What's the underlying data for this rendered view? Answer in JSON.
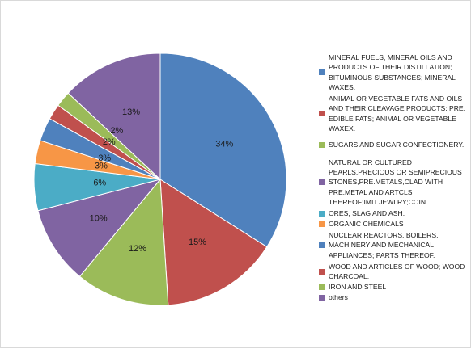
{
  "chart_data": {
    "type": "pie",
    "title": "",
    "start_angle_deg": 0,
    "direction": "clockwise",
    "legend_position": "right",
    "slices": [
      {
        "label": "MINERAL FUELS, MINERAL OILS AND PRODUCTS OF THEIR DISTILLATION; BITUMINOUS SUBSTANCES; MINERAL WAXES.",
        "value": 34,
        "value_label": "34%",
        "color": "#4f81bd"
      },
      {
        "label": "ANIMAL OR VEGETABLE FATS AND OILS AND THEIR CLEAVAGE PRODUCTS; PRE. EDIBLE FATS; ANIMAL OR VEGETABLE WAXEX.",
        "value": 15,
        "value_label": "15%",
        "color": "#c0504d"
      },
      {
        "label": "SUGARS AND SUGAR CONFECTIONERY.",
        "value": 12,
        "value_label": "12%",
        "color": "#9bbb59"
      },
      {
        "label": "NATURAL OR CULTURED PEARLS,PRECIOUS OR SEMIPRECIOUS STONES,PRE.METALS,CLAD WITH PRE.METAL AND ARTCLS THEREOF;IMIT.JEWLRY;COIN.",
        "value": 10,
        "value_label": "10%",
        "color": "#8064a2"
      },
      {
        "label": "ORES, SLAG AND ASH.",
        "value": 6,
        "value_label": "6%",
        "color": "#4bacc6"
      },
      {
        "label": "ORGANIC CHEMICALS",
        "value": 3,
        "value_label": "3%",
        "color": "#f79646"
      },
      {
        "label": "NUCLEAR REACTORS, BOILERS, MACHINERY AND MECHANICAL APPLIANCES; PARTS THEREOF.",
        "value": 3,
        "value_label": "3%",
        "color": "#4f81bd"
      },
      {
        "label": "WOOD AND ARTICLES OF WOOD; WOOD CHARCOAL.",
        "value": 2,
        "value_label": "2%",
        "color": "#c0504d"
      },
      {
        "label": "IRON AND STEEL",
        "value": 2,
        "value_label": "2%",
        "color": "#9bbb59"
      },
      {
        "label": "others",
        "value": 13,
        "value_label": "13%",
        "color": "#8064a2"
      }
    ]
  }
}
